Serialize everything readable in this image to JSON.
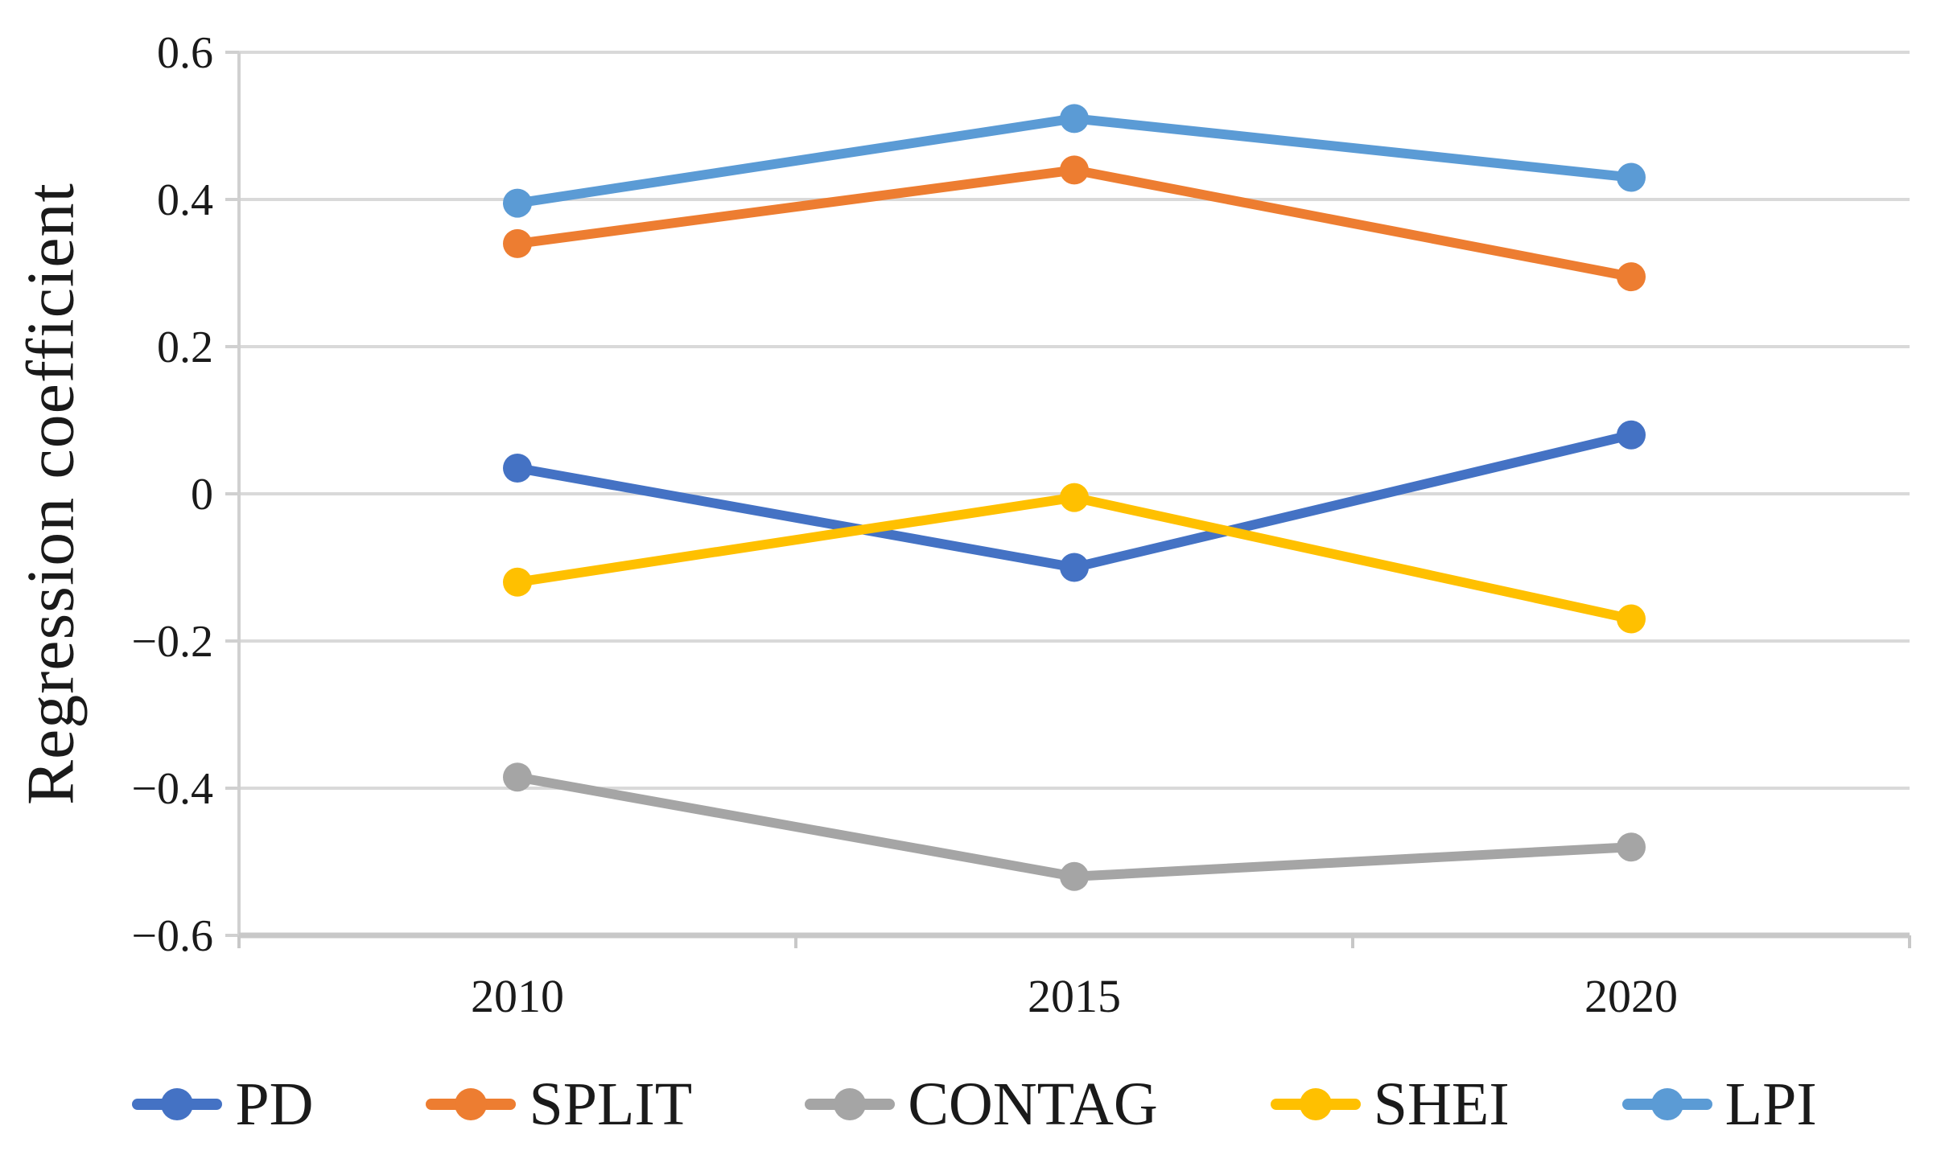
{
  "chart_data": {
    "type": "line",
    "title": "",
    "xlabel": "",
    "ylabel": "Regression coefficient",
    "categories": [
      "2010",
      "2015",
      "2020"
    ],
    "series": [
      {
        "name": "PD",
        "color": "#4472C4",
        "values": [
          0.035,
          -0.1,
          0.08
        ]
      },
      {
        "name": "SPLIT",
        "color": "#ED7D31",
        "values": [
          0.34,
          0.44,
          0.295
        ]
      },
      {
        "name": "CONTAG",
        "color": "#A5A5A5",
        "values": [
          -0.385,
          -0.52,
          -0.48
        ]
      },
      {
        "name": "SHEI",
        "color": "#FFC000",
        "values": [
          -0.12,
          -0.005,
          -0.17
        ]
      },
      {
        "name": "LPI",
        "color": "#5B9BD5",
        "values": [
          0.395,
          0.51,
          0.43
        ]
      }
    ],
    "ylim": [
      -0.6,
      0.6
    ],
    "y_tick_step": 0.2,
    "y_tick_labels": [
      "0.6",
      "0.4",
      "0.2",
      "0",
      "−0.2",
      "−0.4",
      "−0.6"
    ],
    "grid": true,
    "legend_position": "bottom",
    "styles": {
      "gridline_color": "#D9D9D9",
      "axis_color": "#D0D0D0",
      "bottom_axis_color": "#C8C8C8",
      "text_color": "#1a1a1a"
    }
  }
}
